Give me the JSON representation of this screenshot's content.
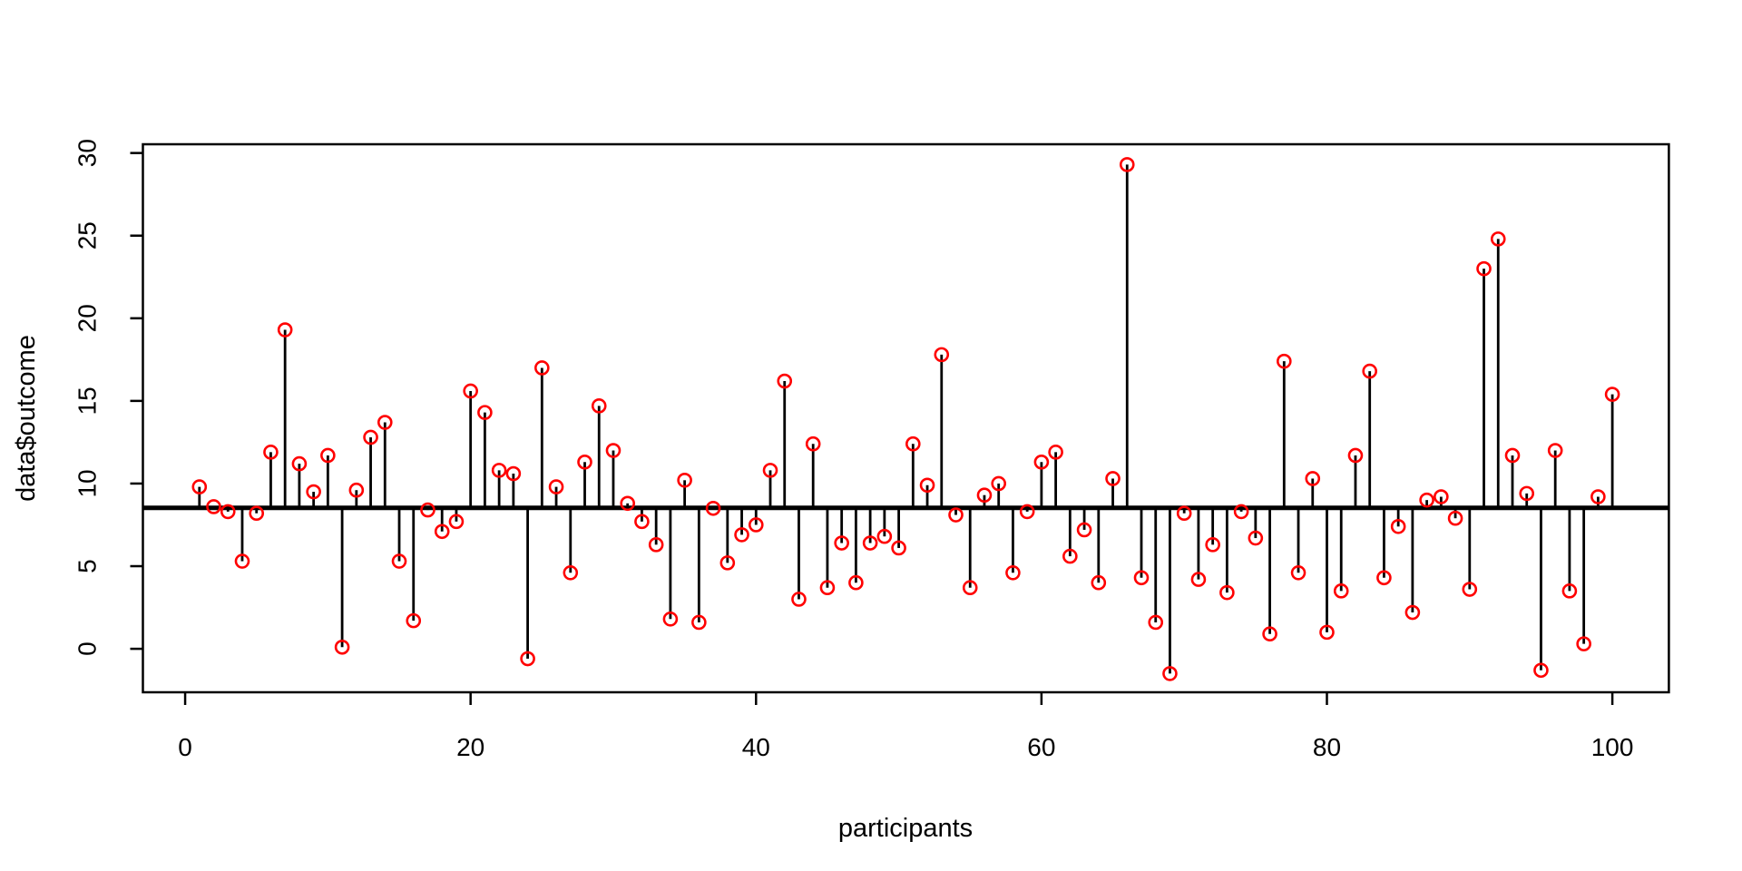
{
  "chart_data": {
    "type": "stem",
    "title": "",
    "xlabel": "participants",
    "ylabel": "data$outcome",
    "x": [
      1,
      2,
      3,
      4,
      5,
      6,
      7,
      8,
      9,
      10,
      11,
      12,
      13,
      14,
      15,
      16,
      17,
      18,
      19,
      20,
      21,
      22,
      23,
      24,
      25,
      26,
      27,
      28,
      29,
      30,
      31,
      32,
      33,
      34,
      35,
      36,
      37,
      38,
      39,
      40,
      41,
      42,
      43,
      44,
      45,
      46,
      47,
      48,
      49,
      50,
      51,
      52,
      53,
      54,
      55,
      56,
      57,
      58,
      59,
      60,
      61,
      62,
      63,
      64,
      65,
      66,
      67,
      68,
      69,
      70,
      71,
      72,
      73,
      74,
      75,
      76,
      77,
      78,
      79,
      80,
      81,
      82,
      83,
      84,
      85,
      86,
      87,
      88,
      89,
      90,
      91,
      92,
      93,
      94,
      95,
      96,
      97,
      98,
      99,
      100
    ],
    "values": [
      9.8,
      8.6,
      8.3,
      5.3,
      8.2,
      11.9,
      19.3,
      11.2,
      9.5,
      11.7,
      0.1,
      9.6,
      12.8,
      13.7,
      5.3,
      1.7,
      8.4,
      7.1,
      7.7,
      15.6,
      14.3,
      10.8,
      10.6,
      -0.6,
      17.0,
      9.8,
      4.6,
      11.3,
      14.7,
      12.0,
      8.8,
      7.7,
      6.3,
      1.8,
      10.2,
      1.6,
      8.5,
      5.2,
      6.9,
      7.5,
      10.8,
      16.2,
      3.0,
      12.4,
      3.7,
      6.4,
      4.0,
      6.4,
      6.8,
      6.1,
      12.4,
      9.9,
      17.8,
      8.1,
      3.7,
      9.3,
      10.0,
      4.6,
      8.3,
      11.3,
      11.9,
      5.6,
      7.2,
      4.0,
      10.3,
      29.3,
      4.3,
      1.6,
      -1.5,
      8.2,
      4.2,
      6.3,
      3.4,
      8.3,
      6.7,
      0.9,
      17.4,
      4.6,
      10.3,
      1.0,
      3.5,
      11.7,
      16.8,
      4.3,
      7.4,
      2.2,
      9.0,
      9.2,
      7.9,
      3.6,
      23.0,
      24.8,
      11.7,
      9.4,
      -1.3,
      12.0,
      3.5,
      0.3,
      9.2,
      15.4
    ],
    "baseline": 8.53,
    "xlim": [
      -2.96,
      103.96
    ],
    "ylim": [
      -2.63,
      30.53
    ],
    "xticks": [
      0,
      20,
      40,
      60,
      80,
      100
    ],
    "yticks": [
      0,
      5,
      10,
      15,
      20,
      25,
      30
    ],
    "grid": false,
    "legend": false,
    "point_color": "#FF0000",
    "stem_color": "#000000",
    "frame_color": "#000000",
    "background": "#FFFFFF"
  }
}
